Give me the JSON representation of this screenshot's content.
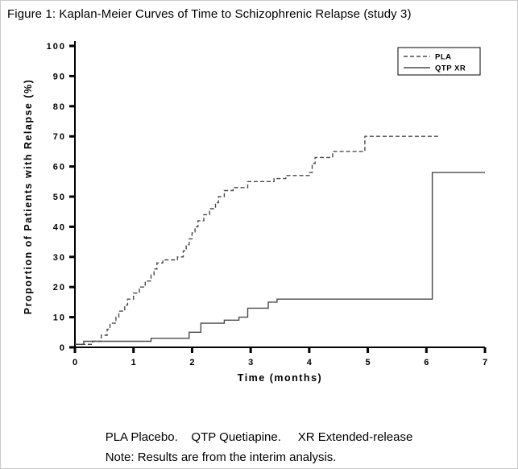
{
  "figure": {
    "title": "Figure 1: Kaplan-Meier Curves of Time to Schizophrenic Relapse (study 3)"
  },
  "footnotes": {
    "abbreviations": "PLA Placebo.    QTP Quetiapine.     XR Extended-release",
    "note": "Note: Results are from the interim analysis."
  },
  "colors": {
    "axis": "#000000",
    "line": "#4a4a4a",
    "background": "#ffffff"
  },
  "chart_data": {
    "type": "line",
    "subtype": "kaplan-meier-step",
    "title": "Figure 1: Kaplan-Meier Curves of Time to Schizophrenic Relapse (study 3)",
    "xlabel": "Time (months)",
    "ylabel": "Proportion of Patients with Relapse (%)",
    "xlim": [
      0,
      7
    ],
    "ylim": [
      0,
      100
    ],
    "xticks": [
      0,
      1,
      2,
      3,
      4,
      5,
      6,
      7
    ],
    "yticks": [
      0,
      10,
      20,
      30,
      40,
      50,
      60,
      70,
      80,
      90,
      100
    ],
    "grid": false,
    "legend_position": "top-right",
    "series": [
      {
        "name": "PLA",
        "style": "dashed",
        "step": true,
        "points": [
          [
            0,
            1
          ],
          [
            0.3,
            2
          ],
          [
            0.45,
            4
          ],
          [
            0.55,
            6
          ],
          [
            0.6,
            8
          ],
          [
            0.7,
            10
          ],
          [
            0.75,
            12
          ],
          [
            0.85,
            14
          ],
          [
            0.9,
            16
          ],
          [
            1.0,
            18
          ],
          [
            1.1,
            20
          ],
          [
            1.2,
            22
          ],
          [
            1.3,
            24
          ],
          [
            1.35,
            26
          ],
          [
            1.4,
            28
          ],
          [
            1.5,
            29
          ],
          [
            1.75,
            30
          ],
          [
            1.85,
            32
          ],
          [
            1.9,
            34
          ],
          [
            1.95,
            36
          ],
          [
            2.0,
            38
          ],
          [
            2.05,
            40
          ],
          [
            2.1,
            42
          ],
          [
            2.2,
            44
          ],
          [
            2.3,
            46
          ],
          [
            2.4,
            48
          ],
          [
            2.45,
            50
          ],
          [
            2.55,
            52
          ],
          [
            2.7,
            53
          ],
          [
            2.95,
            55
          ],
          [
            3.4,
            56
          ],
          [
            3.6,
            57
          ],
          [
            4.0,
            58
          ],
          [
            4.05,
            61
          ],
          [
            4.1,
            63
          ],
          [
            4.4,
            65
          ],
          [
            4.95,
            70
          ],
          [
            6.2,
            70
          ]
        ]
      },
      {
        "name": "QTP XR",
        "style": "solid",
        "step": true,
        "points": [
          [
            0,
            1
          ],
          [
            0.15,
            2
          ],
          [
            1.3,
            3
          ],
          [
            1.95,
            5
          ],
          [
            2.15,
            8
          ],
          [
            2.55,
            9
          ],
          [
            2.8,
            10
          ],
          [
            2.95,
            13
          ],
          [
            3.3,
            15
          ],
          [
            3.45,
            16
          ],
          [
            6.1,
            58
          ],
          [
            7,
            58
          ]
        ]
      }
    ]
  }
}
